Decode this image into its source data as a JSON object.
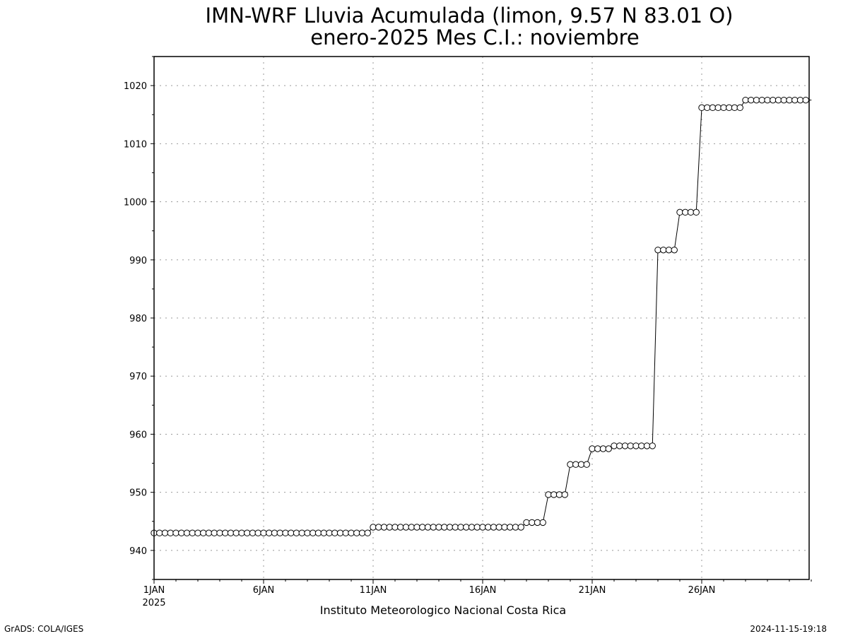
{
  "chart_data": {
    "type": "line",
    "title": "IMN-WRF  Lluvia Acumulada (limon, 9.57  N 83.01  O)",
    "subtitle": "enero-2025 Mes C.I.: noviembre",
    "xlabel": "Instituto Meteorologico Nacional Costa Rica",
    "ylabel": "",
    "ylim": [
      935,
      1025
    ],
    "xlim": [
      1,
      31
    ],
    "yticks": [
      940,
      950,
      960,
      970,
      980,
      990,
      1000,
      1010,
      1020
    ],
    "xticks": [
      {
        "day": 1,
        "label": "1JAN",
        "sublabel": "2025"
      },
      {
        "day": 6,
        "label": "6JAN",
        "sublabel": ""
      },
      {
        "day": 11,
        "label": "11JAN",
        "sublabel": ""
      },
      {
        "day": 16,
        "label": "16JAN",
        "sublabel": ""
      },
      {
        "day": 21,
        "label": "21JAN",
        "sublabel": ""
      },
      {
        "day": 26,
        "label": "26JAN",
        "sublabel": ""
      }
    ],
    "grid": true,
    "marker": "open-circle",
    "line_color": "#000000",
    "steps": [
      {
        "from_day": 1.0,
        "to_day": 11.0,
        "value": 943.0
      },
      {
        "from_day": 11.0,
        "to_day": 18.0,
        "value": 944.0
      },
      {
        "from_day": 18.0,
        "to_day": 19.0,
        "value": 944.8
      },
      {
        "from_day": 19.0,
        "to_day": 20.0,
        "value": 949.6
      },
      {
        "from_day": 20.0,
        "to_day": 21.0,
        "value": 954.8
      },
      {
        "from_day": 21.0,
        "to_day": 22.0,
        "value": 957.5
      },
      {
        "from_day": 22.0,
        "to_day": 24.0,
        "value": 958.0
      },
      {
        "from_day": 24.0,
        "to_day": 25.0,
        "value": 991.7
      },
      {
        "from_day": 25.0,
        "to_day": 26.0,
        "value": 998.2
      },
      {
        "from_day": 26.0,
        "to_day": 28.0,
        "value": 1016.2
      },
      {
        "from_day": 28.0,
        "to_day": 31.01,
        "value": 1017.5
      }
    ],
    "points_per_day": 4
  },
  "footer": {
    "left": "GrADS: COLA/IGES",
    "right": "2024-11-15-19:18"
  }
}
